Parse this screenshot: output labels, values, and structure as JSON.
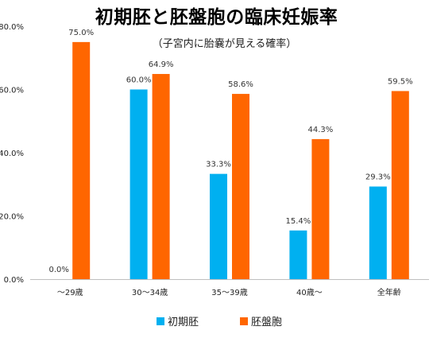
{
  "chart_data": {
    "type": "bar",
    "title": "初期胚と胚盤胞の臨床妊娠率",
    "subtitle": "（子宮内に胎嚢が見える確率）",
    "categories": [
      "〜29歳",
      "30〜34歳",
      "35〜39歳",
      "40歳〜",
      "全年齢"
    ],
    "series": [
      {
        "name": "初期胚",
        "color": "#00B0F0",
        "values": [
          0.0,
          60.0,
          33.3,
          15.4,
          29.3
        ],
        "labels": [
          "0.0%",
          "60.0%",
          "33.3%",
          "15.4%",
          "29.3%"
        ]
      },
      {
        "name": "胚盤胞",
        "color": "#FF6600",
        "values": [
          75.0,
          64.9,
          58.6,
          44.3,
          59.5
        ],
        "labels": [
          "75.0%",
          "64.9%",
          "58.6%",
          "44.3%",
          "59.5%"
        ]
      }
    ],
    "ylim": [
      0,
      80
    ],
    "yticks": [
      0,
      20,
      40,
      60,
      80
    ],
    "ytick_labels": [
      "0.0%",
      "20.0%",
      "40.0%",
      "60.0%",
      "80.0%"
    ],
    "xlabel": "",
    "ylabel": "",
    "grid": false,
    "legend_position": "bottom"
  }
}
